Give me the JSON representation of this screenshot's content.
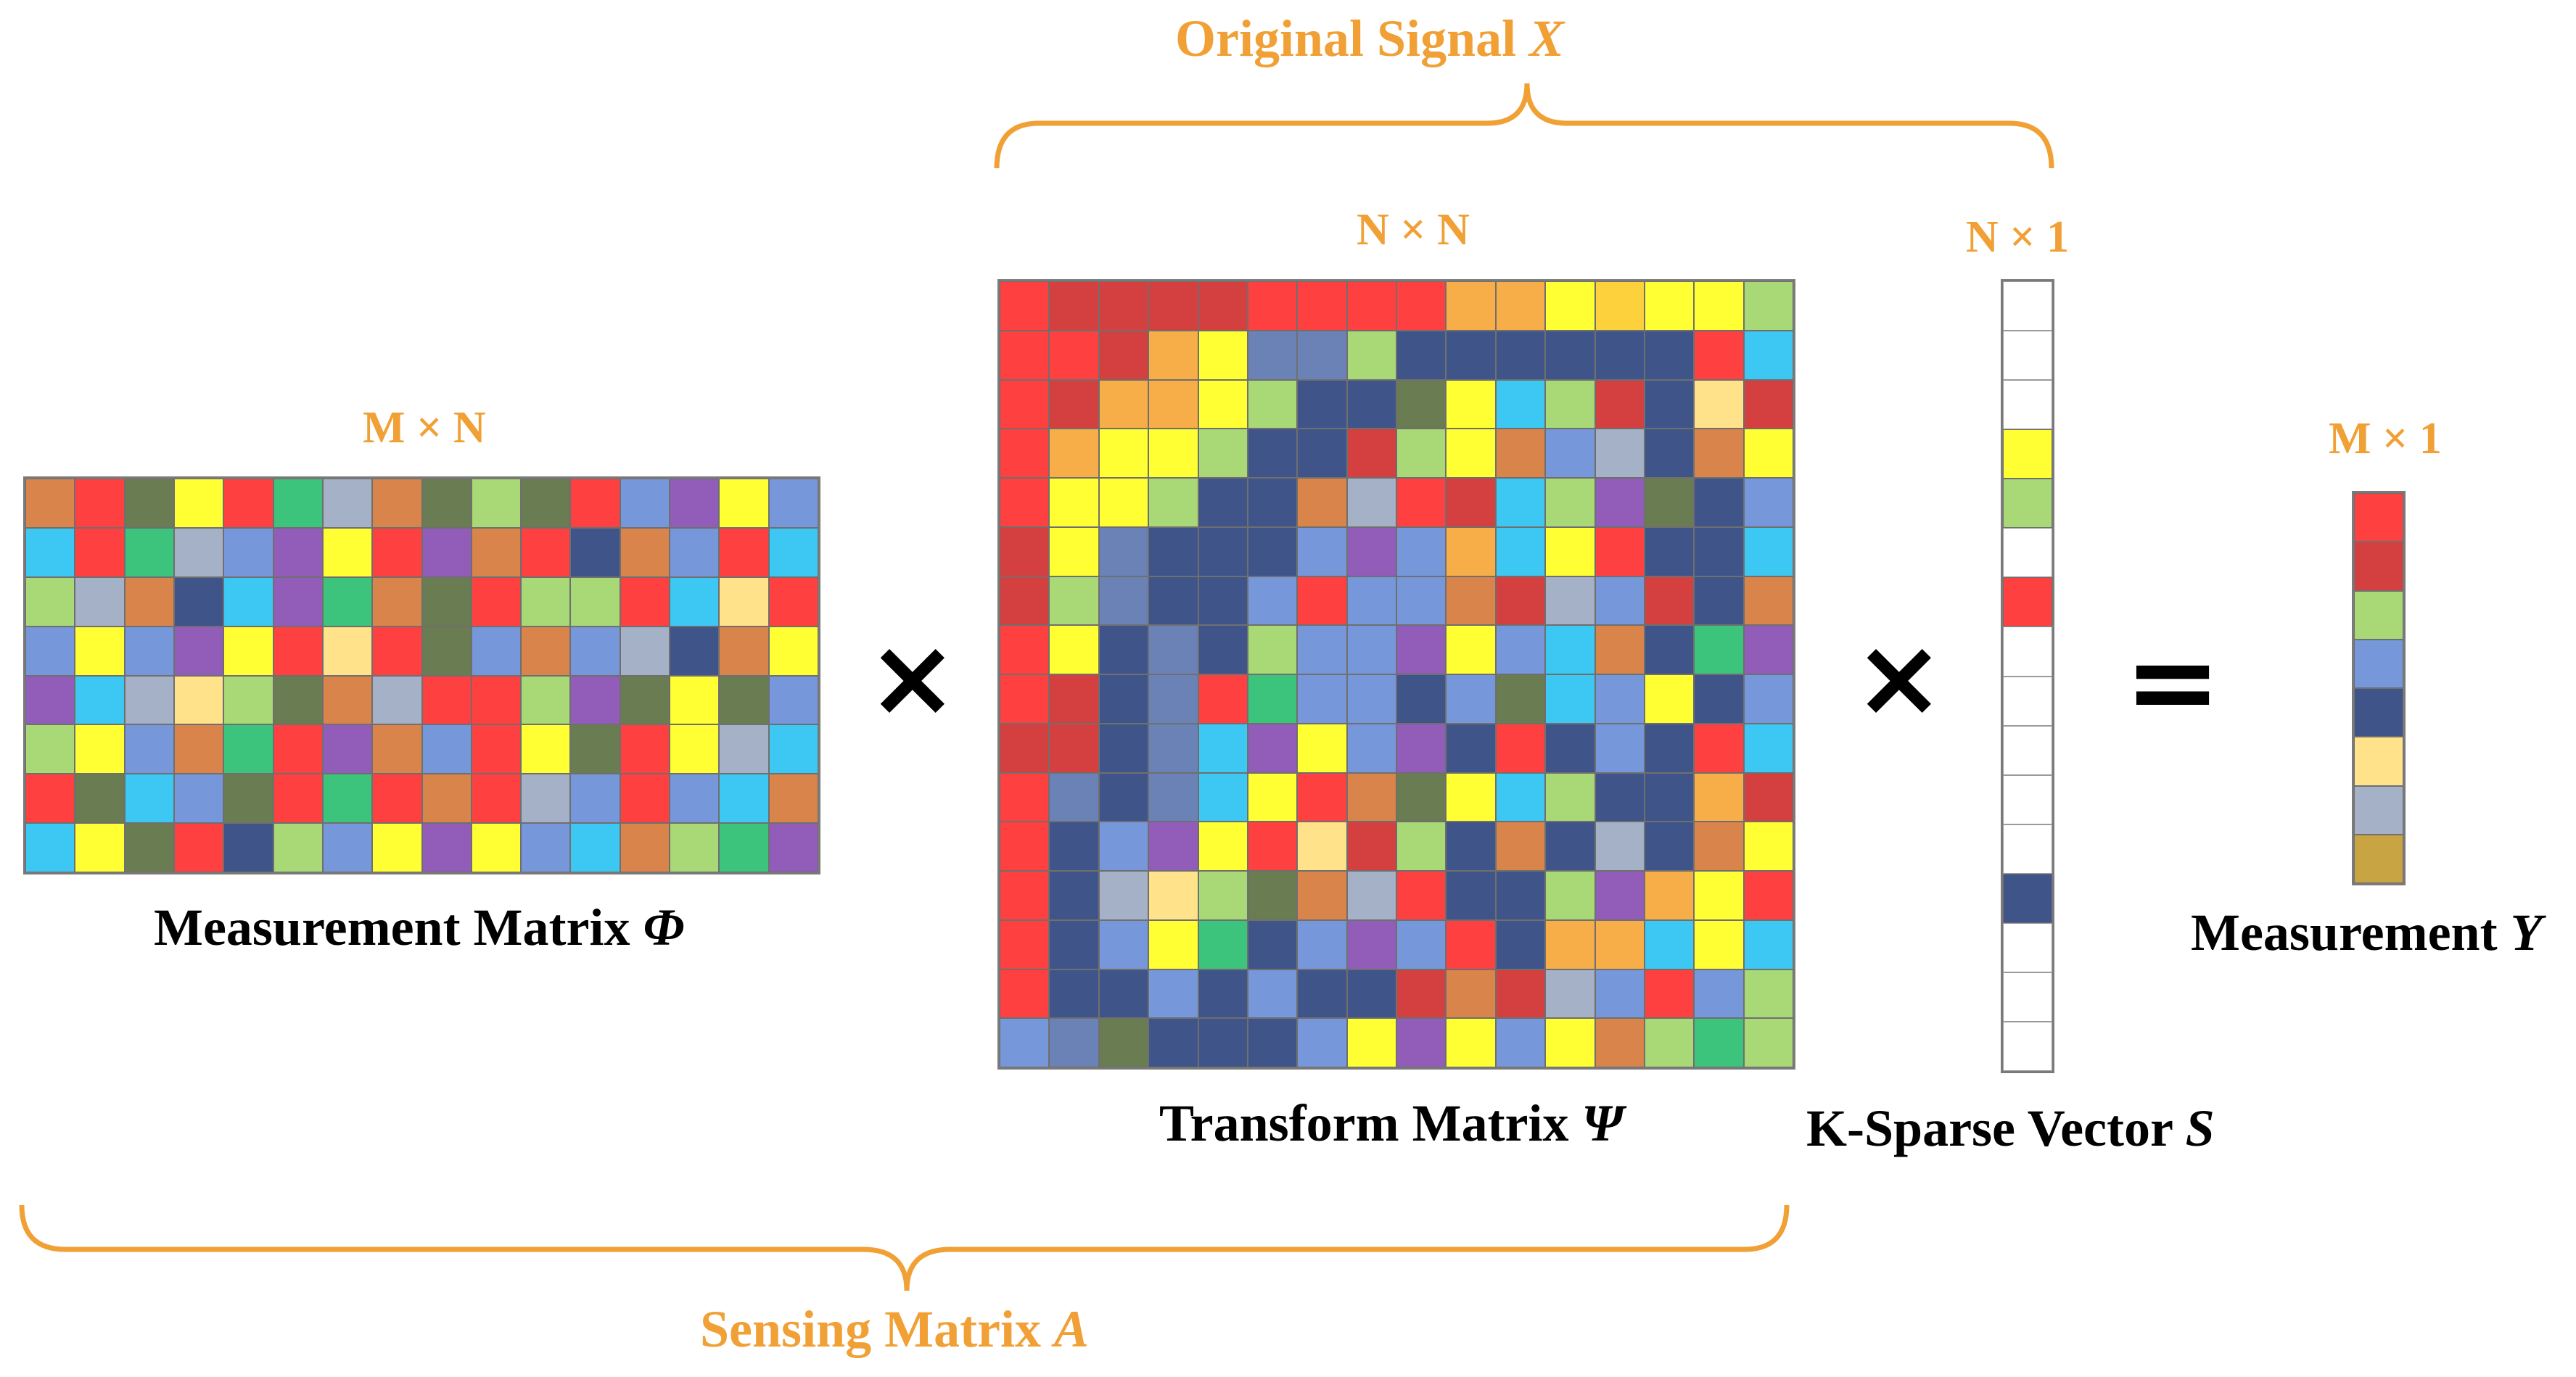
{
  "top_brace": {
    "text": "Original Signal ",
    "var": "X"
  },
  "bottom_brace": {
    "text": "Sensing Matrix ",
    "var": "A"
  },
  "phi": {
    "dim": "M × N",
    "caption": "Measurement Matrix ",
    "var": "Φ",
    "rows": [
      [
        "OR",
        "R",
        "OL",
        "Y",
        "R",
        "G",
        "GR",
        "OR",
        "OL",
        "LG",
        "OL",
        "R",
        "BL",
        "PU",
        "Y",
        "BL"
      ],
      [
        "CY",
        "R",
        "G",
        "GR",
        "BL",
        "PU",
        "Y",
        "R",
        "PU",
        "OR",
        "R",
        "NV",
        "OR",
        "BL",
        "R",
        "CY"
      ],
      [
        "LG",
        "GR",
        "OR",
        "NV",
        "CY",
        "PU",
        "G",
        "OR",
        "OL",
        "R",
        "LG",
        "LG",
        "R",
        "CY",
        "LY",
        "R"
      ],
      [
        "BL",
        "Y",
        "BL",
        "PU",
        "Y",
        "R",
        "LY",
        "R",
        "OL",
        "BL",
        "OR",
        "BL",
        "GR",
        "NV",
        "OR",
        "Y"
      ],
      [
        "PU",
        "CY",
        "GR",
        "LY",
        "LG",
        "OL",
        "OR",
        "GR",
        "R",
        "R",
        "LG",
        "PU",
        "OL",
        "Y",
        "OL",
        "BL"
      ],
      [
        "LG",
        "Y",
        "BL",
        "OR",
        "G",
        "R",
        "PU",
        "OR",
        "BL",
        "R",
        "Y",
        "OL",
        "R",
        "Y",
        "GR",
        "CY"
      ],
      [
        "R",
        "OL",
        "CY",
        "BL",
        "OL",
        "R",
        "G",
        "R",
        "OR",
        "R",
        "GR",
        "BL",
        "R",
        "BL",
        "CY",
        "OR"
      ],
      [
        "CY",
        "Y",
        "OL",
        "R",
        "NV",
        "LG",
        "BL",
        "Y",
        "PU",
        "Y",
        "BL",
        "CY",
        "OR",
        "LG",
        "G",
        "PU"
      ]
    ]
  },
  "psi": {
    "dim": "N × N",
    "caption": "Transform Matrix ",
    "var": "Ψ",
    "rows": [
      [
        "R",
        "DR",
        "DR",
        "DR",
        "DR",
        "R",
        "R",
        "R",
        "R",
        "OA",
        "OA",
        "Y",
        "GO",
        "Y",
        "Y",
        "LG"
      ],
      [
        "R",
        "R",
        "DR",
        "OA",
        "Y",
        "SB",
        "SB",
        "LG",
        "NV",
        "NV",
        "NV",
        "NV",
        "NV",
        "NV",
        "R",
        "CY"
      ],
      [
        "R",
        "DR",
        "OA",
        "OA",
        "Y",
        "LG",
        "NV",
        "NV",
        "OL",
        "Y",
        "CY",
        "LG",
        "DR",
        "NV",
        "LY",
        "DR"
      ],
      [
        "R",
        "OA",
        "Y",
        "Y",
        "LG",
        "NV",
        "NV",
        "DR",
        "LG",
        "Y",
        "OR",
        "BL",
        "GR",
        "NV",
        "OR",
        "Y"
      ],
      [
        "R",
        "Y",
        "Y",
        "LG",
        "NV",
        "NV",
        "OR",
        "GR",
        "R",
        "DR",
        "CY",
        "LG",
        "PU",
        "OL",
        "NV",
        "BL"
      ],
      [
        "DR",
        "Y",
        "SB",
        "NV",
        "NV",
        "NV",
        "BL",
        "PU",
        "BL",
        "OA",
        "CY",
        "Y",
        "R",
        "NV",
        "NV",
        "CY"
      ],
      [
        "DR",
        "LG",
        "SB",
        "NV",
        "NV",
        "BL",
        "R",
        "BL",
        "BL",
        "OR",
        "DR",
        "GR",
        "BL",
        "DR",
        "NV",
        "OR"
      ],
      [
        "R",
        "Y",
        "NV",
        "SB",
        "NV",
        "LG",
        "BL",
        "BL",
        "PU",
        "Y",
        "BL",
        "CY",
        "OR",
        "NV",
        "G",
        "PU"
      ],
      [
        "R",
        "DR",
        "NV",
        "SB",
        "R",
        "G",
        "BL",
        "BL",
        "NV",
        "BL",
        "OL",
        "CY",
        "BL",
        "Y",
        "NV",
        "BL"
      ],
      [
        "DR",
        "DR",
        "NV",
        "SB",
        "CY",
        "PU",
        "Y",
        "BL",
        "PU",
        "NV",
        "R",
        "NV",
        "BL",
        "NV",
        "R",
        "CY"
      ],
      [
        "R",
        "SB",
        "NV",
        "SB",
        "CY",
        "Y",
        "R",
        "OR",
        "OL",
        "Y",
        "CY",
        "LG",
        "NV",
        "NV",
        "OA",
        "DR"
      ],
      [
        "R",
        "NV",
        "BL",
        "PU",
        "Y",
        "R",
        "LY",
        "DR",
        "LG",
        "NV",
        "OR",
        "NV",
        "GR",
        "NV",
        "OR",
        "Y"
      ],
      [
        "R",
        "NV",
        "GR",
        "LY",
        "LG",
        "OL",
        "OR",
        "GR",
        "R",
        "NV",
        "NV",
        "LG",
        "PU",
        "OA",
        "Y",
        "R"
      ],
      [
        "R",
        "NV",
        "BL",
        "Y",
        "G",
        "NV",
        "BL",
        "PU",
        "BL",
        "R",
        "NV",
        "OA",
        "OA",
        "CY",
        "Y",
        "CY"
      ],
      [
        "R",
        "NV",
        "NV",
        "BL",
        "NV",
        "BL",
        "NV",
        "NV",
        "DR",
        "OR",
        "DR",
        "GR",
        "BL",
        "R",
        "BL",
        "LG"
      ],
      [
        "BL",
        "SB",
        "OL",
        "NV",
        "NV",
        "NV",
        "BL",
        "Y",
        "PU",
        "Y",
        "BL",
        "Y",
        "OR",
        "LG",
        "G",
        "LG"
      ]
    ]
  },
  "s_vec": {
    "dim": "N × 1",
    "caption": "K-Sparse Vector ",
    "var": "S",
    "cells": [
      "W",
      "W",
      "W",
      "Y",
      "LG",
      "W",
      "R",
      "W",
      "W",
      "W",
      "W",
      "W",
      "NV",
      "W",
      "W",
      "W"
    ]
  },
  "y_vec": {
    "dim": "M × 1",
    "caption": "Measurement ",
    "var": "Y",
    "cells": [
      "R",
      "DR",
      "LG",
      "BL",
      "NV",
      "LY",
      "GR",
      "MU"
    ]
  },
  "operators": {
    "times1": "×",
    "times2": "×",
    "equals": "="
  },
  "colors": {
    "accent_orange": "#F0A035",
    "R": "#FF4040",
    "DR": "#D43F3F",
    "OR": "#D9844B",
    "OA": "#F7AE48",
    "Y": "#FFFF33",
    "GO": "#FDD13C",
    "LY": "#FFE28A",
    "LG": "#A9D876",
    "G": "#3CC47C",
    "OL": "#6A7C52",
    "CY": "#3CC8F2",
    "BL": "#7797DB",
    "SB": "#6B82B6",
    "NV": "#3F5489",
    "PU": "#925CB9",
    "GR": "#A4B1C7",
    "MU": "#C8A443",
    "W": "#FFFFFF"
  }
}
